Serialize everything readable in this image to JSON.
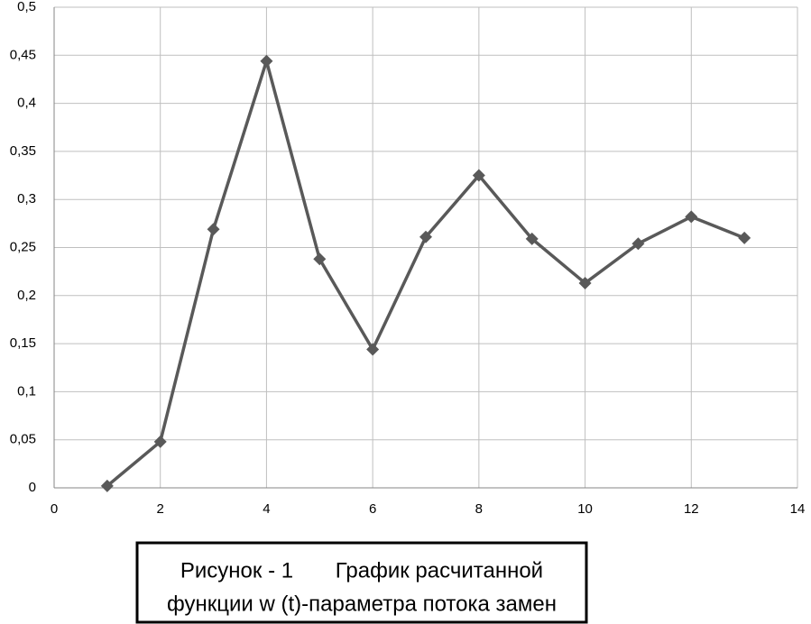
{
  "chart_data": {
    "type": "line",
    "x": [
      1,
      2,
      3,
      4,
      5,
      6,
      7,
      8,
      9,
      10,
      11,
      12,
      13
    ],
    "values": [
      0.002,
      0.048,
      0.269,
      0.444,
      0.238,
      0.144,
      0.261,
      0.325,
      0.259,
      0.213,
      0.254,
      0.282,
      0.26
    ],
    "color": "#595959",
    "xlim": [
      0,
      14
    ],
    "xticks": [
      0,
      2,
      4,
      6,
      8,
      10,
      12,
      14
    ],
    "ylim": [
      0,
      0.5
    ],
    "yticks": [
      0,
      {
        "value": 0.05,
        "label": "0,05"
      },
      {
        "value": 0.1,
        "label": "0,1"
      },
      {
        "value": 0.15,
        "label": "0,15"
      },
      {
        "value": 0.2,
        "label": "0,2"
      },
      {
        "value": 0.25,
        "label": "0,25"
      },
      {
        "value": 0.3,
        "label": "0,3"
      },
      {
        "value": 0.35,
        "label": "0,35"
      },
      {
        "value": 0.4,
        "label": "0,4"
      },
      {
        "value": 0.45,
        "label": "0,45"
      },
      {
        "value": 0.5,
        "label": "0,5"
      }
    ],
    "grid": true,
    "caption": [
      "Рисунок - 1       График расчитанной",
      "функции w (t)-параметра потока замен"
    ]
  }
}
